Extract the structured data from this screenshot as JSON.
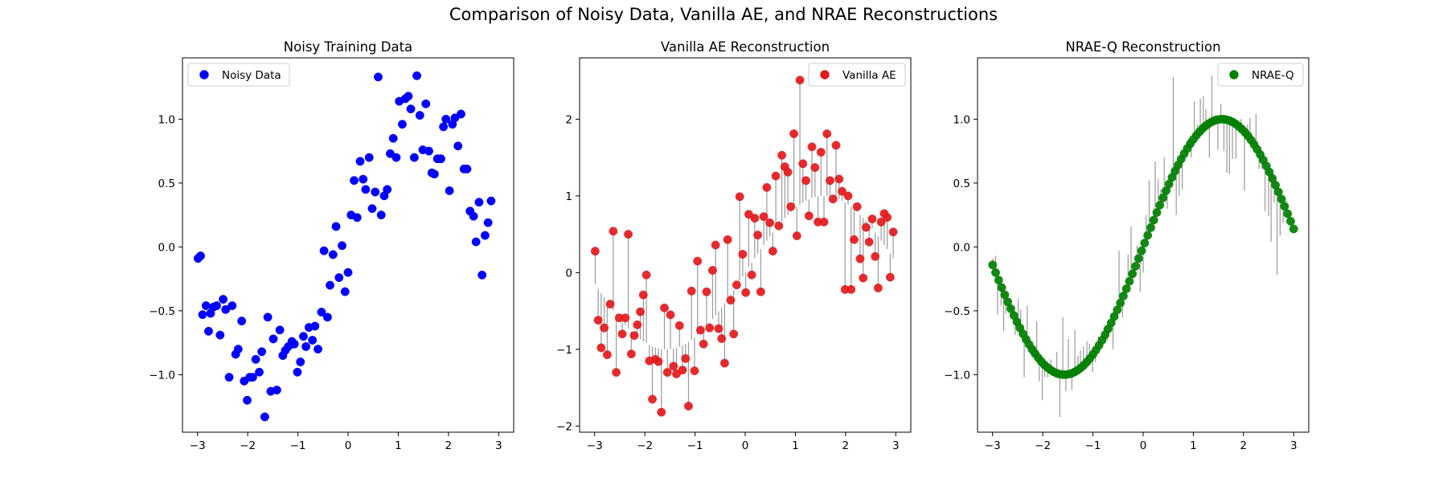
{
  "figure": {
    "title": "Comparison of Noisy Data, Vanilla AE, and NRAE Reconstructions"
  },
  "chart_data": [
    {
      "type": "scatter",
      "title": "Noisy Training Data",
      "xlabel": "",
      "ylabel": "",
      "xlim": [
        -3.3,
        3.3
      ],
      "ylim": [
        -1.45,
        1.48
      ],
      "xticks": [
        -3,
        -2,
        -1,
        0,
        1,
        2,
        3
      ],
      "xtick_labels": [
        "−3",
        "−2",
        "−1",
        "0",
        "1",
        "2",
        "3"
      ],
      "yticks": [
        -1.0,
        -0.5,
        0.0,
        0.5,
        1.0
      ],
      "ytick_labels": [
        "−1.0",
        "−0.5",
        "0.0",
        "0.5",
        "1.0"
      ],
      "legend": {
        "position": "upper-left"
      },
      "grid": false,
      "series": [
        {
          "name": "Noisy Data",
          "color": "#0000ff",
          "points": [
            [
              -2.99,
              -0.09
            ],
            [
              -2.94,
              -0.07
            ],
            [
              -2.9,
              -0.53
            ],
            [
              -2.83,
              -0.46
            ],
            [
              -2.78,
              -0.66
            ],
            [
              -2.74,
              -0.52
            ],
            [
              -2.68,
              -0.47
            ],
            [
              -2.62,
              -0.46
            ],
            [
              -2.55,
              -0.69
            ],
            [
              -2.49,
              -0.41
            ],
            [
              -2.44,
              -0.49
            ],
            [
              -2.37,
              -1.02
            ],
            [
              -2.31,
              -0.46
            ],
            [
              -2.24,
              -0.84
            ],
            [
              -2.19,
              -0.8
            ],
            [
              -2.12,
              -0.58
            ],
            [
              -2.07,
              -1.05
            ],
            [
              -2.01,
              -1.2
            ],
            [
              -1.96,
              -1.02
            ],
            [
              -1.9,
              -1.02
            ],
            [
              -1.84,
              -0.88
            ],
            [
              -1.77,
              -0.98
            ],
            [
              -1.72,
              -0.82
            ],
            [
              -1.66,
              -1.33
            ],
            [
              -1.6,
              -0.55
            ],
            [
              -1.54,
              -1.13
            ],
            [
              -1.49,
              -0.72
            ],
            [
              -1.42,
              -1.12
            ],
            [
              -1.36,
              -0.65
            ],
            [
              -1.3,
              -0.85
            ],
            [
              -1.25,
              -0.81
            ],
            [
              -1.19,
              -0.78
            ],
            [
              -1.12,
              -0.74
            ],
            [
              -1.07,
              -0.76
            ],
            [
              -1.01,
              -0.98
            ],
            [
              -0.95,
              -0.9
            ],
            [
              -0.89,
              -0.7
            ],
            [
              -0.84,
              -0.78
            ],
            [
              -0.78,
              -0.63
            ],
            [
              -0.71,
              -0.73
            ],
            [
              -0.66,
              -0.62
            ],
            [
              -0.6,
              -0.8
            ],
            [
              -0.53,
              -0.51
            ],
            [
              -0.48,
              -0.03
            ],
            [
              -0.41,
              -0.55
            ],
            [
              -0.36,
              -0.3
            ],
            [
              -0.3,
              -0.06
            ],
            [
              -0.24,
              0.16
            ],
            [
              -0.18,
              -0.24
            ],
            [
              -0.12,
              0.01
            ],
            [
              -0.06,
              -0.35
            ],
            [
              0.0,
              -0.2
            ],
            [
              0.06,
              0.25
            ],
            [
              0.12,
              0.52
            ],
            [
              0.18,
              0.23
            ],
            [
              0.24,
              0.67
            ],
            [
              0.3,
              0.53
            ],
            [
              0.35,
              0.45
            ],
            [
              0.42,
              0.7
            ],
            [
              0.48,
              0.3
            ],
            [
              0.54,
              0.43
            ],
            [
              0.6,
              1.33
            ],
            [
              0.66,
              0.25
            ],
            [
              0.72,
              0.4
            ],
            [
              0.78,
              0.45
            ],
            [
              0.84,
              0.73
            ],
            [
              0.9,
              0.85
            ],
            [
              0.96,
              0.7
            ],
            [
              1.02,
              1.14
            ],
            [
              1.08,
              0.96
            ],
            [
              1.14,
              1.16
            ],
            [
              1.2,
              1.18
            ],
            [
              1.25,
              1.08
            ],
            [
              1.32,
              0.7
            ],
            [
              1.37,
              1.34
            ],
            [
              1.43,
              1.03
            ],
            [
              1.49,
              0.76
            ],
            [
              1.55,
              1.12
            ],
            [
              1.61,
              0.75
            ],
            [
              1.67,
              0.58
            ],
            [
              1.72,
              0.57
            ],
            [
              1.78,
              0.69
            ],
            [
              1.85,
              0.69
            ],
            [
              1.9,
              0.94
            ],
            [
              1.95,
              1.0
            ],
            [
              2.02,
              0.44
            ],
            [
              2.08,
              0.96
            ],
            [
              2.13,
              1.01
            ],
            [
              2.19,
              0.79
            ],
            [
              2.25,
              1.04
            ],
            [
              2.31,
              0.61
            ],
            [
              2.37,
              0.61
            ],
            [
              2.43,
              0.28
            ],
            [
              2.5,
              0.24
            ],
            [
              2.55,
              0.04
            ],
            [
              2.61,
              0.35
            ],
            [
              2.67,
              -0.22
            ],
            [
              2.73,
              0.09
            ],
            [
              2.79,
              0.19
            ],
            [
              2.85,
              0.36
            ]
          ]
        }
      ]
    },
    {
      "type": "scatter",
      "title": "Vanilla AE Reconstruction",
      "xlabel": "",
      "ylabel": "",
      "xlim": [
        -3.3,
        3.3
      ],
      "ylim": [
        -2.08,
        2.8
      ],
      "xticks": [
        -3,
        -2,
        -1,
        0,
        1,
        2,
        3
      ],
      "xtick_labels": [
        "−3",
        "−2",
        "−1",
        "0",
        "1",
        "2",
        "3"
      ],
      "yticks": [
        -2,
        -1,
        0,
        1,
        2
      ],
      "ytick_labels": [
        "−2",
        "−1",
        "0",
        "1",
        "2"
      ],
      "legend": {
        "position": "upper-right"
      },
      "grid": false,
      "connector_note": "gray lines join each reconstruction to the true curve sin(x)",
      "series": [
        {
          "name": "Vanilla AE",
          "color": "#e31a1c",
          "points": [
            [
              -2.99,
              0.28
            ],
            [
              -2.93,
              -0.62
            ],
            [
              -2.87,
              -0.98
            ],
            [
              -2.81,
              -0.72
            ],
            [
              -2.75,
              -1.07
            ],
            [
              -2.69,
              -0.41
            ],
            [
              -2.63,
              0.54
            ],
            [
              -2.57,
              -1.3
            ],
            [
              -2.51,
              -0.59
            ],
            [
              -2.45,
              -0.8
            ],
            [
              -2.39,
              -0.59
            ],
            [
              -2.33,
              0.5
            ],
            [
              -2.27,
              -1.06
            ],
            [
              -2.21,
              -0.82
            ],
            [
              -2.15,
              -0.68
            ],
            [
              -2.09,
              -0.51
            ],
            [
              -2.03,
              -0.29
            ],
            [
              -1.97,
              -0.03
            ],
            [
              -1.91,
              -1.15
            ],
            [
              -1.85,
              -1.65
            ],
            [
              -1.79,
              -1.13
            ],
            [
              -1.73,
              -1.16
            ],
            [
              -1.67,
              -1.82
            ],
            [
              -1.61,
              -0.46
            ],
            [
              -1.55,
              -1.3
            ],
            [
              -1.49,
              -0.55
            ],
            [
              -1.43,
              -1.22
            ],
            [
              -1.37,
              -1.32
            ],
            [
              -1.31,
              -0.69
            ],
            [
              -1.25,
              -1.27
            ],
            [
              -1.19,
              -1.12
            ],
            [
              -1.13,
              -1.74
            ],
            [
              -1.07,
              -0.24
            ],
            [
              -1.01,
              -1.28
            ],
            [
              -0.95,
              0.15
            ],
            [
              -0.89,
              -0.75
            ],
            [
              -0.83,
              -0.93
            ],
            [
              -0.77,
              -0.25
            ],
            [
              -0.71,
              -0.72
            ],
            [
              -0.65,
              0.03
            ],
            [
              -0.59,
              0.36
            ],
            [
              -0.53,
              -0.73
            ],
            [
              -0.47,
              -0.86
            ],
            [
              -0.41,
              -1.18
            ],
            [
              -0.35,
              0.43
            ],
            [
              -0.29,
              -0.36
            ],
            [
              -0.23,
              -0.8
            ],
            [
              -0.17,
              -0.16
            ],
            [
              -0.11,
              0.99
            ],
            [
              -0.05,
              0.24
            ],
            [
              0.01,
              -0.26
            ],
            [
              0.07,
              0.76
            ],
            [
              0.13,
              -0.03
            ],
            [
              0.19,
              0.71
            ],
            [
              0.25,
              0.49
            ],
            [
              0.31,
              -0.25
            ],
            [
              0.37,
              0.73
            ],
            [
              0.43,
              1.11
            ],
            [
              0.49,
              0.65
            ],
            [
              0.55,
              0.28
            ],
            [
              0.61,
              1.26
            ],
            [
              0.67,
              0.61
            ],
            [
              0.73,
              1.53
            ],
            [
              0.79,
              1.38
            ],
            [
              0.85,
              1.31
            ],
            [
              0.91,
              0.86
            ],
            [
              0.97,
              1.81
            ],
            [
              1.03,
              0.48
            ],
            [
              1.09,
              2.51
            ],
            [
              1.15,
              1.42
            ],
            [
              1.21,
              1.2
            ],
            [
              1.27,
              0.74
            ],
            [
              1.33,
              1.64
            ],
            [
              1.39,
              1.37
            ],
            [
              1.45,
              0.66
            ],
            [
              1.51,
              1.57
            ],
            [
              1.57,
              0.66
            ],
            [
              1.63,
              1.81
            ],
            [
              1.69,
              1.2
            ],
            [
              1.75,
              0.96
            ],
            [
              1.81,
              1.66
            ],
            [
              1.87,
              1.22
            ],
            [
              1.93,
              1.06
            ],
            [
              1.99,
              -0.22
            ],
            [
              2.05,
              1.0
            ],
            [
              2.11,
              -0.22
            ],
            [
              2.17,
              0.43
            ],
            [
              2.23,
              0.86
            ],
            [
              2.29,
              0.18
            ],
            [
              2.35,
              -0.07
            ],
            [
              2.41,
              0.59
            ],
            [
              2.47,
              0.4
            ],
            [
              2.53,
              0.7
            ],
            [
              2.59,
              0.21
            ],
            [
              2.65,
              -0.2
            ],
            [
              2.71,
              0.66
            ],
            [
              2.77,
              0.77
            ],
            [
              2.83,
              0.72
            ],
            [
              2.89,
              -0.06
            ],
            [
              2.95,
              0.53
            ]
          ]
        }
      ]
    },
    {
      "type": "scatter",
      "title": "NRAE-Q Reconstruction",
      "xlabel": "",
      "ylabel": "",
      "xlim": [
        -3.3,
        3.3
      ],
      "ylim": [
        -1.45,
        1.48
      ],
      "xticks": [
        -3,
        -2,
        -1,
        0,
        1,
        2,
        3
      ],
      "xtick_labels": [
        "−3",
        "−2",
        "−1",
        "0",
        "1",
        "2",
        "3"
      ],
      "yticks": [
        -1.0,
        -0.5,
        0.0,
        0.5,
        1.0
      ],
      "ytick_labels": [
        "−1.0",
        "−0.5",
        "0.0",
        "0.5",
        "1.0"
      ],
      "legend": {
        "position": "upper-right"
      },
      "grid": false,
      "connector_note": "gray lines join each reconstruction (on sin(x)) to its noisy training point",
      "series": [
        {
          "name": "NRAE-Q",
          "color": "#008000",
          "x_range": [
            -3.0,
            3.0
          ],
          "n_points": 100,
          "curve": "sin(x)"
        }
      ]
    }
  ]
}
